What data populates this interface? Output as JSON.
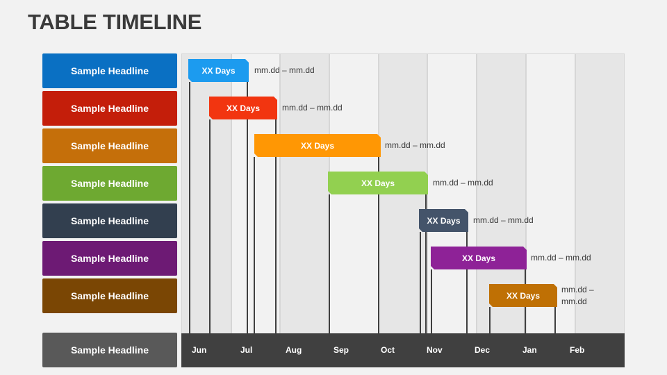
{
  "title": "TABLE TIMELINE",
  "rows": [
    {
      "headline": "Sample Headline",
      "color": "#0A70C3",
      "bar_color": "#1C9BEF",
      "duration": "XX Days",
      "dates": "mm.dd – mm.dd"
    },
    {
      "headline": "Sample Headline",
      "color": "#C41E0A",
      "bar_color": "#F23510",
      "duration": "XX Days",
      "dates": "mm.dd – mm.dd"
    },
    {
      "headline": "Sample Headline",
      "color": "#C56F0A",
      "bar_color": "#FF9704",
      "duration": "XX Days",
      "dates": "mm.dd – mm.dd"
    },
    {
      "headline": "Sample Headline",
      "color": "#6EA931",
      "bar_color": "#92D050",
      "duration": "XX Days",
      "dates": "mm.dd – mm.dd"
    },
    {
      "headline": "Sample Headline",
      "color": "#323F4F",
      "bar_color": "#44546A",
      "duration": "XX Days",
      "dates": "mm.dd – mm.dd"
    },
    {
      "headline": "Sample Headline",
      "color": "#6D1A74",
      "bar_color": "#8E2297",
      "duration": "XX Days",
      "dates": "mm.dd – mm.dd"
    },
    {
      "headline": "Sample Headline",
      "color": "#7A4604",
      "bar_color": "#BF7004",
      "duration": "XX Days",
      "dates": "mm.dd – mm.dd"
    }
  ],
  "axis": {
    "headline": "Sample Headline",
    "headline_color": "#595959",
    "months": [
      "Jun",
      "Jul",
      "Aug",
      "Sep",
      "Oct",
      "Nov",
      "Dec",
      "Jan",
      "Feb"
    ]
  }
}
